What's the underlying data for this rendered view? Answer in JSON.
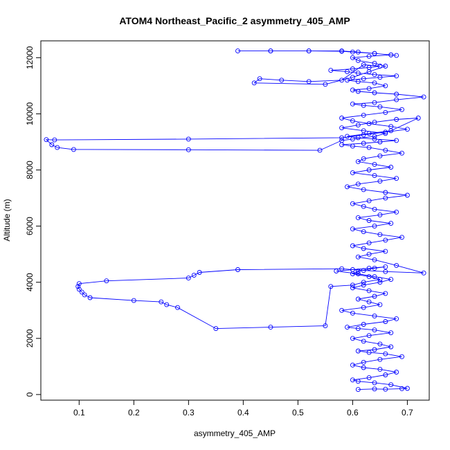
{
  "chart_data": {
    "type": "scatter",
    "title": "ATOM4 Northeast_Pacific_2 asymmetry_405_AMP",
    "xlabel": "asymmetry_405_AMP",
    "ylabel": "Altitude (m)",
    "xlim": [
      0.03,
      0.74
    ],
    "ylim": [
      -200,
      12600
    ],
    "xticks": [
      0.1,
      0.2,
      0.3,
      0.4,
      0.5,
      0.6,
      0.7
    ],
    "xtick_labels": [
      "0.1",
      "0.2",
      "0.3",
      "0.4",
      "0.5",
      "0.6",
      "0.7"
    ],
    "yticks": [
      0,
      2000,
      4000,
      6000,
      8000,
      10000,
      12000
    ],
    "ytick_labels": [
      "0",
      "2000",
      "4000",
      "6000",
      "8000",
      "10000",
      "12000"
    ],
    "grid": false,
    "marker": "open-circle",
    "connected": true,
    "color": "#0000ff",
    "series": [
      {
        "x": [
          0.61,
          0.64,
          0.66,
          0.69,
          0.7,
          0.67,
          0.64,
          0.61,
          0.6,
          0.63,
          0.66,
          0.68,
          0.65,
          0.62,
          0.6,
          0.62,
          0.65,
          0.69,
          0.66,
          0.63,
          0.61,
          0.64,
          0.67,
          0.65,
          0.62,
          0.6,
          0.63,
          0.67,
          0.64,
          0.61,
          0.59,
          0.62,
          0.66,
          0.68,
          0.64,
          0.6,
          0.58,
          0.62,
          0.65,
          0.63,
          0.61,
          0.64,
          0.66,
          0.63,
          0.6,
          0.62,
          0.65,
          0.67,
          0.64,
          0.61,
          0.57,
          0.6,
          0.63,
          0.66,
          0.64,
          0.61,
          0.6,
          0.63,
          0.65,
          0.62,
          0.6,
          0.56,
          0.55,
          0.45,
          0.35,
          0.28,
          0.26,
          0.25,
          0.2,
          0.12,
          0.11,
          0.105,
          0.1,
          0.098,
          0.1,
          0.15,
          0.3,
          0.31,
          0.32,
          0.39,
          0.58,
          0.62,
          0.66,
          0.73,
          0.68,
          0.64,
          0.61,
          0.63,
          0.66,
          0.62,
          0.6,
          0.63,
          0.66,
          0.69,
          0.65,
          0.62,
          0.6,
          0.64,
          0.67,
          0.63,
          0.61,
          0.65,
          0.68,
          0.64,
          0.62,
          0.6,
          0.63,
          0.66,
          0.7,
          0.66,
          0.62,
          0.59,
          0.61,
          0.65,
          0.68,
          0.64,
          0.6,
          0.63,
          0.67,
          0.64,
          0.61,
          0.62,
          0.65,
          0.69,
          0.66,
          0.63,
          0.6,
          0.58,
          0.62,
          0.65,
          0.68,
          0.64,
          0.61,
          0.59,
          0.63,
          0.67,
          0.72,
          0.68,
          0.64,
          0.61,
          0.58,
          0.62,
          0.66,
          0.64,
          0.6,
          0.58,
          0.54,
          0.3,
          0.09,
          0.06,
          0.05,
          0.04,
          0.055,
          0.3,
          0.58,
          0.62,
          0.66,
          0.7,
          0.67,
          0.63,
          0.6,
          0.58,
          0.62,
          0.66,
          0.69,
          0.65,
          0.62,
          0.6,
          0.64,
          0.68,
          0.73,
          0.68,
          0.64,
          0.61,
          0.6,
          0.63,
          0.66,
          0.64,
          0.61,
          0.59,
          0.62,
          0.65,
          0.68,
          0.64,
          0.61,
          0.59,
          0.56,
          0.6,
          0.63,
          0.65,
          0.62,
          0.58,
          0.52,
          0.47,
          0.43,
          0.42,
          0.55,
          0.6,
          0.63,
          0.66,
          0.64,
          0.61,
          0.6,
          0.63,
          0.67,
          0.64,
          0.6,
          0.58,
          0.52,
          0.45,
          0.39,
          0.45,
          0.52,
          0.58,
          0.61,
          0.64,
          0.67,
          0.68
        ],
        "y": [
          180,
          200,
          190,
          210,
          220,
          350,
          420,
          470,
          520,
          600,
          700,
          800,
          900,
          960,
          1050,
          1150,
          1250,
          1350,
          1450,
          1500,
          1550,
          1600,
          1700,
          1800,
          1900,
          2000,
          2100,
          2200,
          2300,
          2350,
          2400,
          2500,
          2600,
          2700,
          2800,
          2900,
          3000,
          3100,
          3200,
          3300,
          3400,
          3500,
          3600,
          3700,
          3800,
          3900,
          4000,
          4100,
          4200,
          4300,
          4400,
          4450,
          4500,
          4550,
          4500,
          4400,
          4300,
          4200,
          4100,
          4000,
          3900,
          3850,
          2450,
          2400,
          2350,
          3100,
          3200,
          3300,
          3350,
          3450,
          3550,
          3650,
          3750,
          3850,
          3950,
          4050,
          4150,
          4250,
          4350,
          4450,
          4480,
          4420,
          4380,
          4330,
          4600,
          4800,
          4900,
          5000,
          5100,
          5200,
          5300,
          5400,
          5500,
          5600,
          5700,
          5800,
          5900,
          6000,
          6100,
          6200,
          6300,
          6400,
          6500,
          6600,
          6700,
          6800,
          6900,
          7000,
          7100,
          7200,
          7300,
          7400,
          7500,
          7600,
          7700,
          7800,
          7900,
          8000,
          8100,
          8200,
          8300,
          8400,
          8500,
          8600,
          8700,
          8800,
          8850,
          8900,
          8950,
          9000,
          9050,
          9100,
          9150,
          9200,
          9300,
          9400,
          9850,
          9800,
          9700,
          9600,
          9500,
          9400,
          9300,
          9200,
          9100,
          9050,
          8700,
          8720,
          8730,
          8800,
          8900,
          9080,
          9070,
          9100,
          9150,
          9250,
          9350,
          9450,
          9550,
          9650,
          9750,
          9850,
          9950,
          10050,
          10150,
          10250,
          10300,
          10350,
          10400,
          10500,
          10600,
          10700,
          10750,
          10800,
          10850,
          10900,
          11000,
          11100,
          11150,
          11200,
          11250,
          11300,
          11350,
          11400,
          11450,
          11500,
          11550,
          11600,
          11650,
          11700,
          11750,
          11200,
          11150,
          11200,
          11250,
          11100,
          11050,
          11300,
          11500,
          11700,
          11800,
          11900,
          12000,
          12050,
          12100,
          12150,
          12200,
          12230,
          12240,
          12240,
          12240,
          12240,
          12240,
          12240,
          12200,
          12150,
          12100,
          12080
        ]
      }
    ]
  }
}
